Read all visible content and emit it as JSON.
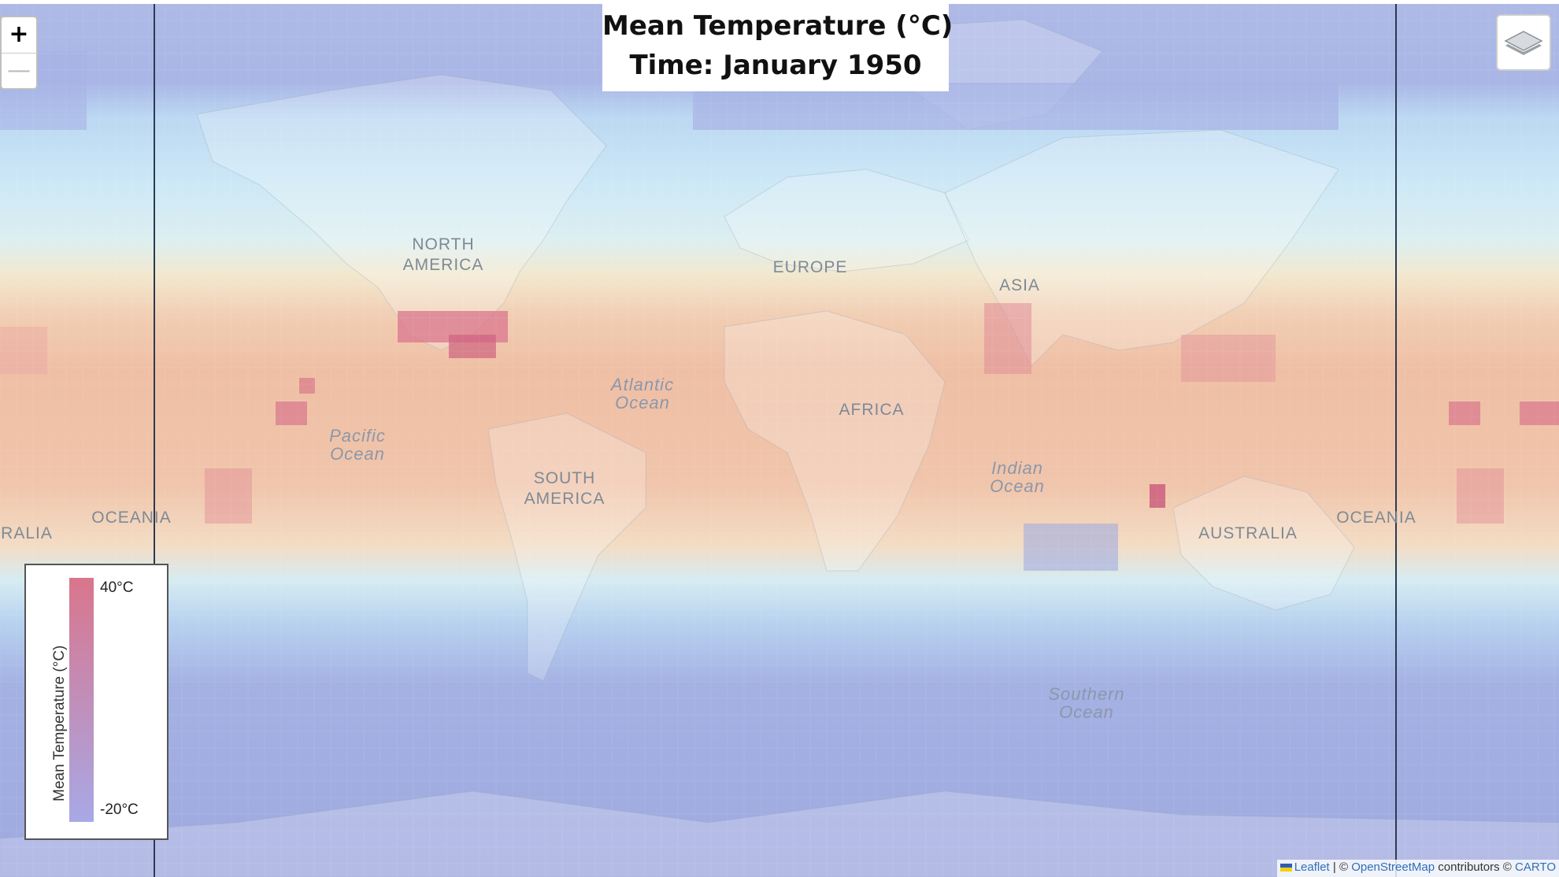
{
  "title": {
    "line1": "Mean Temperature (°C)",
    "line2": "Time: January 1950"
  },
  "zoom": {
    "in_label": "+",
    "out_label": "—"
  },
  "layers_control": {
    "icon": "layers-icon"
  },
  "legend": {
    "title": "Mean Temperature (°C)",
    "max_label": "40°C",
    "min_label": "-20°C",
    "max_color": "#d9758c",
    "min_color": "#a8a8e6"
  },
  "map_labels": {
    "north_america": "NORTH AMERICA",
    "south_america": "SOUTH AMERICA",
    "europe": "EUROPE",
    "asia": "ASIA",
    "africa": "AFRICA",
    "australia": "AUSTRALIA",
    "oceania_left": "OCEANIA",
    "oceania_right": "OCEANIA",
    "australia_wrap": "RALIA",
    "pacific_ocean": "Pacific Ocean",
    "atlantic_ocean": "Atlantic Ocean",
    "indian_ocean": "Indian Ocean",
    "southern_ocean": "Southern Ocean"
  },
  "attribution": {
    "leaflet": "Leaflet",
    "separator": " | © ",
    "osm": "OpenStreetMap",
    "contributors": " contributors © ",
    "carto": "CARTO"
  },
  "colors": {
    "cold": "#a8aee3",
    "cool": "#cce8f5",
    "mild": "#f7e9cc",
    "warm": "#f2c2a6",
    "hot": "#d9758c"
  }
}
